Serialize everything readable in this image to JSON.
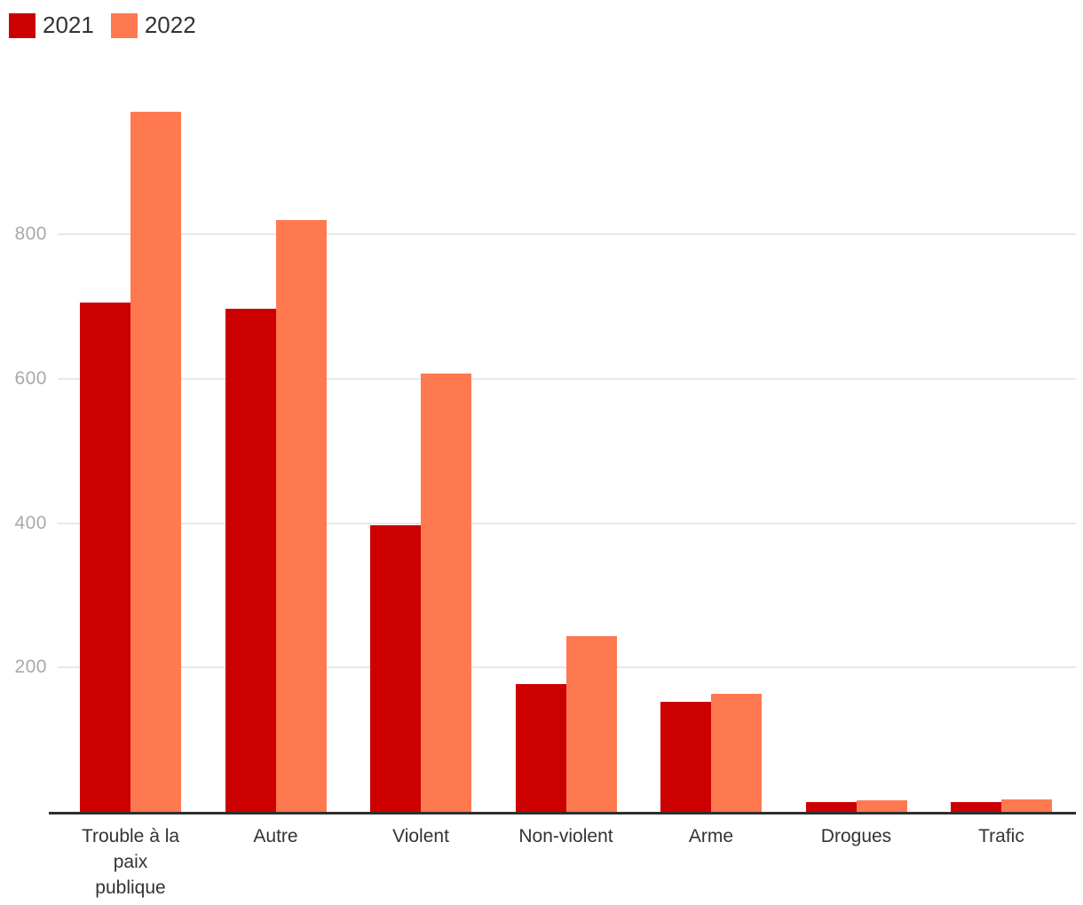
{
  "chart_data": {
    "type": "bar",
    "title": "",
    "xlabel": "",
    "ylabel": "",
    "categories": [
      "Trouble à la paix publique",
      "Autre",
      "Violent",
      "Non-violent",
      "Arme",
      "Drogues",
      "Trafic"
    ],
    "category_labels": [
      "Trouble à la\npaix\npublique",
      "Autre",
      "Violent",
      "Non-violent",
      "Arme",
      "Drogues",
      "Trafic"
    ],
    "series": [
      {
        "name": "2021",
        "color": "#cc0000",
        "values": [
          706,
          697,
          397,
          177,
          152,
          14,
          13
        ]
      },
      {
        "name": "2022",
        "color": "#ff7950",
        "values": [
          970,
          820,
          607,
          244,
          163,
          16,
          17
        ]
      }
    ],
    "ylim": [
      0,
      1000
    ],
    "yticks": [
      200,
      400,
      600,
      800
    ],
    "grid": "horizontal",
    "legend_position": "top-left",
    "colors": {
      "grid": "#e8e8e8",
      "axis": "#2f2f2f",
      "tick_label": "#a9a9a9",
      "category_label": "#333333",
      "legend_label": "#333333"
    }
  }
}
